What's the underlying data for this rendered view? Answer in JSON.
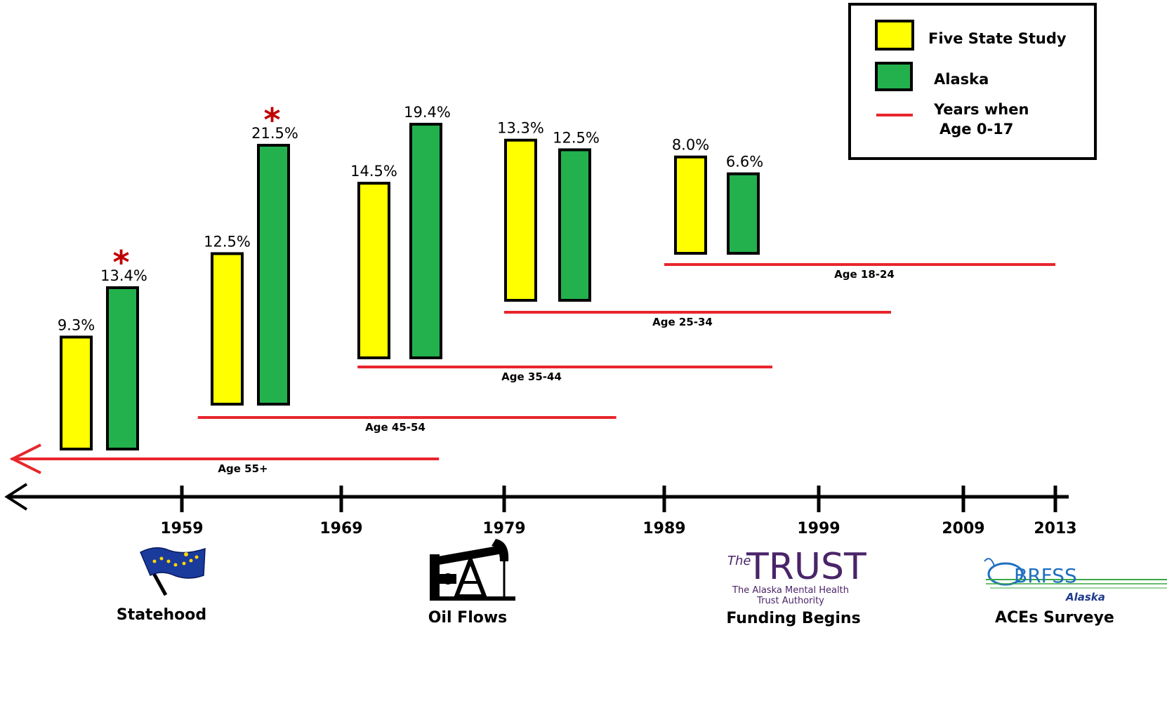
{
  "colors": {
    "five_state": "#ffff00",
    "alaska": "#22b14c",
    "age_line": "#e8262c",
    "asterisk": "#c00000",
    "axis": "#000000"
  },
  "legend": {
    "items": [
      {
        "label": "Five State Study",
        "swatch": "yellow-box"
      },
      {
        "label": "Alaska",
        "swatch": "green-box"
      },
      {
        "label": "Years when",
        "label2": "Age 0-17",
        "swatch": "red-line"
      }
    ]
  },
  "chart_data": {
    "type": "bar",
    "series": [
      {
        "name": "Five State Study",
        "color": "#ffff00"
      },
      {
        "name": "Alaska",
        "color": "#22b14c"
      }
    ],
    "groups": [
      {
        "age_group": "Age 55+",
        "five_state": 9.3,
        "alaska": 13.4,
        "five_state_label": "9.3%",
        "alaska_label": "13.4%",
        "alaska_significant": true,
        "years_age_0_17": [
          1935,
          1975
        ]
      },
      {
        "age_group": "Age 45-54",
        "five_state": 12.5,
        "alaska": 21.5,
        "five_state_label": "12.5%",
        "alaska_label": "21.5%",
        "alaska_significant": true,
        "years_age_0_17": [
          1960,
          1986
        ]
      },
      {
        "age_group": "Age 35-44",
        "five_state": 14.5,
        "alaska": 19.4,
        "five_state_label": "14.5%",
        "alaska_label": "19.4%",
        "alaska_significant": false,
        "years_age_0_17": [
          1970,
          1996
        ]
      },
      {
        "age_group": "Age 25-34",
        "five_state": 13.3,
        "alaska": 12.5,
        "five_state_label": "13.3%",
        "alaska_label": "12.5%",
        "alaska_significant": false,
        "years_age_0_17": [
          1979,
          2004
        ]
      },
      {
        "age_group": "Age 18-24",
        "five_state": 8.0,
        "alaska": 6.6,
        "five_state_label": "8.0%",
        "alaska_label": "6.6%",
        "alaska_significant": false,
        "years_age_0_17": [
          1989,
          2013
        ]
      }
    ],
    "asterisk_symbol": "*",
    "timeline": {
      "ticks": [
        "1959",
        "1969",
        "1979",
        "1989",
        "1999",
        "2009",
        "2013"
      ],
      "events": [
        {
          "year": "1959",
          "label": "Statehood",
          "icon": "alaska-flag-icon"
        },
        {
          "year": "1979",
          "label": "Oil Flows",
          "icon": "oil-pump-icon"
        },
        {
          "year": "1999",
          "label": "Funding Begins",
          "icon": "trust-logo-icon",
          "logo_text_1": "The",
          "logo_text_2": "TRUST",
          "logo_text_3": "The Alaska Mental Health",
          "logo_text_4": "Trust Authority"
        },
        {
          "year": "2013",
          "label": "ACEs Surveye",
          "icon": "brfss-logo-icon",
          "logo_text_1": "BRFSS",
          "logo_text_2": "Alaska"
        }
      ]
    }
  }
}
